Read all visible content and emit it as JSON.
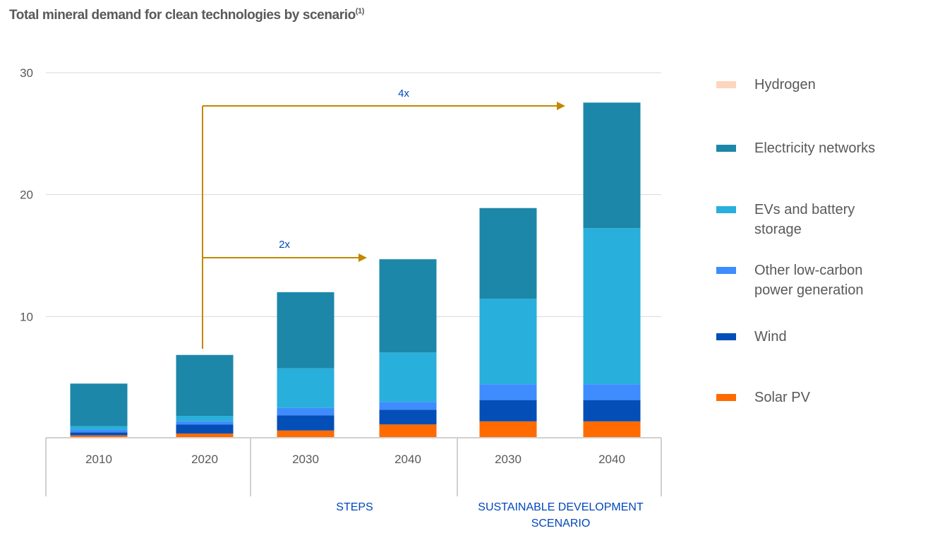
{
  "chart_data": {
    "type": "bar",
    "stacked": true,
    "title": "Total mineral demand for clean technologies by scenario",
    "title_superscript": "(1)",
    "xlabel": "",
    "ylabel": "",
    "ylim": [
      0,
      30
    ],
    "yticks": [
      10,
      20,
      30
    ],
    "grid": true,
    "legend_position": "right",
    "categories": [
      "2010",
      "2020",
      "2030",
      "2040",
      "2030",
      "2040"
    ],
    "groups": [
      {
        "label": "",
        "categories": [
          0,
          1
        ]
      },
      {
        "label": "STEPS",
        "categories": [
          2,
          3
        ]
      },
      {
        "label": "SUSTAINABLE DEVELOPMENT SCENARIO",
        "label_lines": [
          "SUSTAINABLE DEVELOPMENT",
          "SCENARIO"
        ],
        "categories": [
          4,
          5
        ]
      }
    ],
    "series": [
      {
        "name": "Solar PV",
        "color": "#FF6B00",
        "values": [
          0.25,
          0.4,
          0.65,
          1.15,
          1.4,
          1.4
        ]
      },
      {
        "name": "Wind",
        "color": "#034EB7",
        "values": [
          0.25,
          0.75,
          1.25,
          1.2,
          1.75,
          1.75
        ]
      },
      {
        "name": "Other low-carbon power generation",
        "color": "#3F8CFF",
        "values": [
          0.2,
          0.25,
          0.6,
          0.65,
          1.3,
          1.3
        ]
      },
      {
        "name": "EVs and battery storage",
        "color": "#29AFDB",
        "values": [
          0.3,
          0.45,
          3.25,
          4.05,
          7.0,
          12.8
        ]
      },
      {
        "name": "Electricity networks",
        "color": "#1C87A9",
        "values": [
          3.5,
          5.0,
          6.25,
          7.65,
          7.45,
          10.3
        ]
      },
      {
        "name": "Hydrogen",
        "color": "#FDD5BC",
        "values": [
          0,
          0,
          0,
          0,
          0,
          0
        ]
      }
    ],
    "annotations": [
      {
        "text": "2x",
        "from_category": 1,
        "to_category": 3,
        "color": "#C28800"
      },
      {
        "text": "4x",
        "from_category": 1,
        "to_category": 5,
        "color": "#C28800"
      }
    ]
  },
  "legend": [
    {
      "name": "Hydrogen",
      "color": "#FDD5BC"
    },
    {
      "name": "Electricity networks",
      "color": "#1C87A9"
    },
    {
      "name": "EVs and battery storage",
      "color": "#29AFDB"
    },
    {
      "name": "Other low-carbon power generation",
      "color": "#3F8CFF"
    },
    {
      "name": "Wind",
      "color": "#034EB7"
    },
    {
      "name": "Solar PV",
      "color": "#FF6B00"
    }
  ]
}
